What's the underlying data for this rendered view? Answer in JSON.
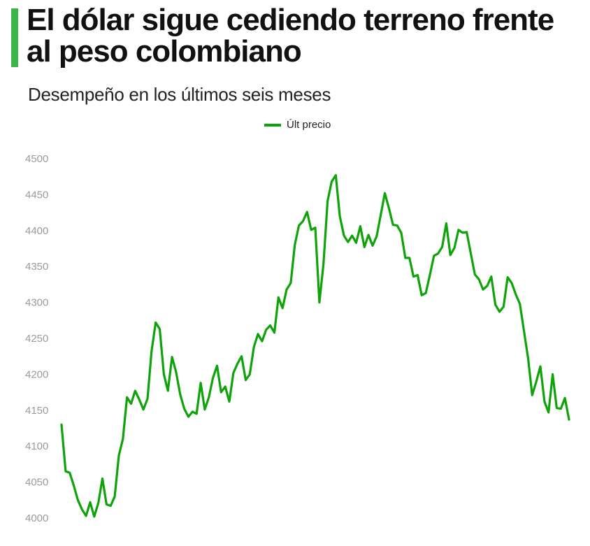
{
  "header": {
    "title": "El dólar sigue cediendo terreno frente al peso colombiano",
    "subtitle": "Desempeño en los últimos seis meses",
    "accent_color": "#3bb54a"
  },
  "chart_data": {
    "type": "line",
    "title": "El dólar sigue cediendo terreno frente al peso colombiano",
    "subtitle": "Desempeño en los últimos seis meses",
    "xlabel": "",
    "ylabel": "",
    "ylim": [
      4000,
      4500
    ],
    "yticks": [
      4500,
      4450,
      4400,
      4350,
      4300,
      4250,
      4200,
      4150,
      4100,
      4050,
      4000
    ],
    "grid": false,
    "legend_position": "top-center",
    "series": [
      {
        "name": "Últ precio",
        "color": "#0fa30a",
        "values": [
          4130,
          4065,
          4063,
          4045,
          4025,
          4012,
          4003,
          4022,
          4002,
          4021,
          4055,
          4019,
          4017,
          4030,
          4087,
          4110,
          4168,
          4159,
          4177,
          4165,
          4151,
          4166,
          4232,
          4272,
          4263,
          4200,
          4177,
          4224,
          4203,
          4172,
          4152,
          4141,
          4148,
          4145,
          4188,
          4151,
          4168,
          4195,
          4212,
          4175,
          4183,
          4162,
          4202,
          4215,
          4225,
          4192,
          4200,
          4238,
          4256,
          4246,
          4262,
          4268,
          4258,
          4307,
          4292,
          4318,
          4327,
          4380,
          4407,
          4413,
          4426,
          4401,
          4404,
          4300,
          4353,
          4441,
          4468,
          4477,
          4420,
          4393,
          4384,
          4393,
          4383,
          4406,
          4377,
          4394,
          4379,
          4392,
          4422,
          4452,
          4431,
          4408,
          4407,
          4397,
          4362,
          4362,
          4336,
          4338,
          4310,
          4313,
          4338,
          4365,
          4368,
          4377,
          4410,
          4366,
          4376,
          4401,
          4397,
          4398,
          4368,
          4339,
          4332,
          4318,
          4323,
          4336,
          4297,
          4287,
          4294,
          4335,
          4327,
          4311,
          4298,
          4260,
          4222,
          4171,
          4190,
          4211,
          4162,
          4147,
          4200,
          4153,
          4152,
          4167,
          4137
        ]
      }
    ]
  }
}
